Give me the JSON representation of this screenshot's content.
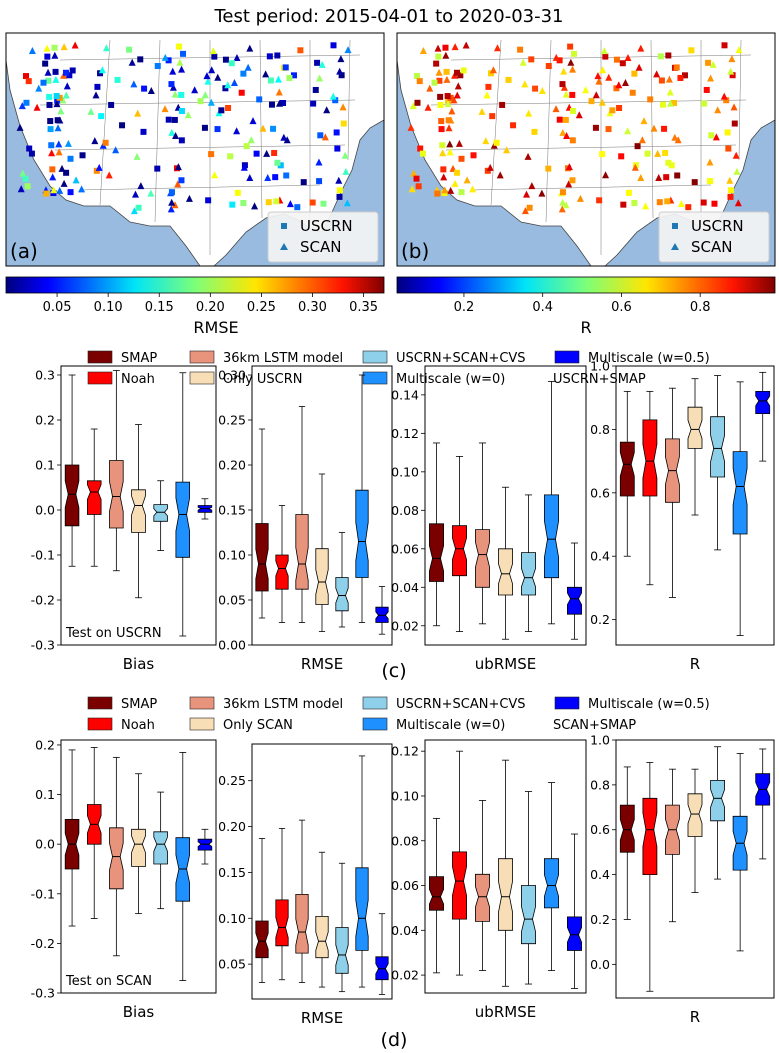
{
  "figure_title": "Test period: 2015-04-01 to 2020-03-31",
  "colors": {
    "SMAP": "#7a0000",
    "Noah": "#ff0000",
    "LSTM36": "#e8937b",
    "OnlyLocal": "#f7deb6",
    "CVS": "#8ecfe9",
    "MS0": "#1e90ff",
    "MS05": "#0000ff",
    "ocean": "#99bbe0",
    "land": "#ffffff"
  },
  "maps": [
    {
      "panel_label": "(a)",
      "metric": "RMSE",
      "colorbar_label": "RMSE",
      "colorbar_ticks": [
        "0.05",
        "0.10",
        "0.15",
        "0.20",
        "0.25",
        "0.30",
        "0.35"
      ],
      "legend": [
        "USCRN",
        "SCAN"
      ]
    },
    {
      "panel_label": "(b)",
      "metric": "R",
      "colorbar_label": "R",
      "colorbar_ticks": [
        "0.2",
        "0.4",
        "0.6",
        "0.8"
      ],
      "legend": [
        "USCRN",
        "SCAN"
      ]
    }
  ],
  "legend_c": {
    "items": [
      "SMAP",
      "Noah",
      "36km LSTM model",
      "Only USCRN",
      "USCRN+SCAN+CVS",
      "Multiscale (w=0)",
      "Multiscale (w=0.5)"
    ],
    "extra": "USCRN+SMAP"
  },
  "legend_d": {
    "items": [
      "SMAP",
      "Noah",
      "36km LSTM model",
      "Only SCAN",
      "USCRN+SCAN+CVS",
      "Multiscale (w=0)",
      "Multiscale (w=0.5)"
    ],
    "extra": "SCAN+SMAP"
  },
  "panel_c_label": "(c)",
  "panel_d_label": "(d)",
  "chart_data": [
    {
      "type": "boxplot",
      "group": "c",
      "metric": "Bias",
      "xlabel": "Bias",
      "annotation": "Test on USCRN",
      "ylim": [
        -0.3,
        0.32
      ],
      "yticks": [
        "-0.3",
        "-0.2",
        "-0.1",
        "0.0",
        "0.1",
        "0.2",
        "0.3"
      ],
      "boxes": [
        {
          "name": "SMAP",
          "whislo": -0.125,
          "q1": -0.035,
          "med": 0.035,
          "q3": 0.1,
          "whishi": 0.3
        },
        {
          "name": "Noah",
          "whislo": -0.125,
          "q1": -0.01,
          "med": 0.04,
          "q3": 0.065,
          "whishi": 0.18
        },
        {
          "name": "36km LSTM model",
          "whislo": -0.135,
          "q1": -0.04,
          "med": 0.03,
          "q3": 0.11,
          "whishi": 0.31
        },
        {
          "name": "Only USCRN",
          "whislo": -0.195,
          "q1": -0.05,
          "med": 0.01,
          "q3": 0.045,
          "whishi": 0.19
        },
        {
          "name": "USCRN+SCAN+CVS",
          "whislo": -0.09,
          "q1": -0.025,
          "med": -0.005,
          "q3": 0.012,
          "whishi": 0.065
        },
        {
          "name": "Multiscale (w=0)",
          "whislo": -0.28,
          "q1": -0.105,
          "med": -0.01,
          "q3": 0.062,
          "whishi": 0.305
        },
        {
          "name": "Multiscale (w=0.5)",
          "whislo": -0.02,
          "q1": -0.005,
          "med": 0.003,
          "q3": 0.01,
          "whishi": 0.025
        }
      ]
    },
    {
      "type": "boxplot",
      "group": "c",
      "metric": "RMSE",
      "xlabel": "RMSE",
      "ylim": [
        0.0,
        0.31
      ],
      "yticks": [
        "0.00",
        "0.05",
        "0.10",
        "0.15",
        "0.20",
        "0.25",
        "0.30"
      ],
      "boxes": [
        {
          "name": "SMAP",
          "whislo": 0.03,
          "q1": 0.06,
          "med": 0.09,
          "q3": 0.135,
          "whishi": 0.24
        },
        {
          "name": "Noah",
          "whislo": 0.025,
          "q1": 0.062,
          "med": 0.085,
          "q3": 0.1,
          "whishi": 0.155
        },
        {
          "name": "36km LSTM model",
          "whislo": 0.025,
          "q1": 0.062,
          "med": 0.09,
          "q3": 0.145,
          "whishi": 0.265
        },
        {
          "name": "Only USCRN",
          "whislo": 0.015,
          "q1": 0.045,
          "med": 0.07,
          "q3": 0.107,
          "whishi": 0.19
        },
        {
          "name": "USCRN+SCAN+CVS",
          "whislo": 0.02,
          "q1": 0.038,
          "med": 0.055,
          "q3": 0.075,
          "whishi": 0.125
        },
        {
          "name": "Multiscale (w=0)",
          "whislo": 0.025,
          "q1": 0.075,
          "med": 0.115,
          "q3": 0.172,
          "whishi": 0.3
        },
        {
          "name": "Multiscale (w=0.5)",
          "whislo": 0.012,
          "q1": 0.025,
          "med": 0.033,
          "q3": 0.042,
          "whishi": 0.065
        }
      ]
    },
    {
      "type": "boxplot",
      "group": "c",
      "metric": "ubRMSE",
      "xlabel": "ubRMSE",
      "ylim": [
        0.01,
        0.155
      ],
      "yticks": [
        "0.02",
        "0.04",
        "0.06",
        "0.08",
        "0.10",
        "0.12",
        "0.14"
      ],
      "boxes": [
        {
          "name": "SMAP",
          "whislo": 0.02,
          "q1": 0.043,
          "med": 0.055,
          "q3": 0.073,
          "whishi": 0.115
        },
        {
          "name": "Noah",
          "whislo": 0.017,
          "q1": 0.046,
          "med": 0.06,
          "q3": 0.072,
          "whishi": 0.108
        },
        {
          "name": "36km LSTM model",
          "whislo": 0.021,
          "q1": 0.04,
          "med": 0.057,
          "q3": 0.07,
          "whishi": 0.115
        },
        {
          "name": "Only USCRN",
          "whislo": 0.013,
          "q1": 0.036,
          "med": 0.047,
          "q3": 0.06,
          "whishi": 0.092
        },
        {
          "name": "USCRN+SCAN+CVS",
          "whislo": 0.017,
          "q1": 0.036,
          "med": 0.045,
          "q3": 0.058,
          "whishi": 0.088
        },
        {
          "name": "Multiscale (w=0)",
          "whislo": 0.021,
          "q1": 0.045,
          "med": 0.065,
          "q3": 0.088,
          "whishi": 0.147
        },
        {
          "name": "Multiscale (w=0.5)",
          "whislo": 0.013,
          "q1": 0.026,
          "med": 0.034,
          "q3": 0.04,
          "whishi": 0.063
        }
      ]
    },
    {
      "type": "boxplot",
      "group": "c",
      "metric": "R",
      "xlabel": "R",
      "ylim": [
        0.12,
        1.0
      ],
      "yticks": [
        "0.2",
        "0.4",
        "0.6",
        "0.8",
        "1.0"
      ],
      "boxes": [
        {
          "name": "SMAP",
          "whislo": 0.4,
          "q1": 0.59,
          "med": 0.69,
          "q3": 0.76,
          "whishi": 0.92
        },
        {
          "name": "Noah",
          "whislo": 0.31,
          "q1": 0.59,
          "med": 0.7,
          "q3": 0.83,
          "whishi": 0.92
        },
        {
          "name": "36km LSTM model",
          "whislo": 0.27,
          "q1": 0.57,
          "med": 0.67,
          "q3": 0.77,
          "whishi": 0.93
        },
        {
          "name": "Only USCRN",
          "whislo": 0.53,
          "q1": 0.74,
          "med": 0.8,
          "q3": 0.87,
          "whishi": 0.96
        },
        {
          "name": "USCRN+SCAN+CVS",
          "whislo": 0.42,
          "q1": 0.65,
          "med": 0.74,
          "q3": 0.84,
          "whishi": 0.97
        },
        {
          "name": "Multiscale (w=0)",
          "whislo": 0.15,
          "q1": 0.47,
          "med": 0.62,
          "q3": 0.73,
          "whishi": 0.95
        },
        {
          "name": "Multiscale (w=0.5)",
          "whislo": 0.7,
          "q1": 0.85,
          "med": 0.89,
          "q3": 0.92,
          "whishi": 0.98
        }
      ]
    },
    {
      "type": "boxplot",
      "group": "d",
      "metric": "Bias",
      "xlabel": "Bias",
      "annotation": "Test on SCAN",
      "ylim": [
        -0.3,
        0.21
      ],
      "yticks": [
        "-0.3",
        "-0.2",
        "-0.1",
        "0.0",
        "0.1",
        "0.2"
      ],
      "boxes": [
        {
          "name": "SMAP",
          "whislo": -0.165,
          "q1": -0.05,
          "med": 0.0,
          "q3": 0.05,
          "whishi": 0.19
        },
        {
          "name": "Noah",
          "whislo": -0.15,
          "q1": 0.0,
          "med": 0.04,
          "q3": 0.08,
          "whishi": 0.195
        },
        {
          "name": "36km LSTM model",
          "whislo": -0.225,
          "q1": -0.09,
          "med": -0.025,
          "q3": 0.033,
          "whishi": 0.175
        },
        {
          "name": "Only SCAN",
          "whislo": -0.14,
          "q1": -0.045,
          "med": 0.0,
          "q3": 0.03,
          "whishi": 0.142
        },
        {
          "name": "USCRN+SCAN+CVS",
          "whislo": -0.13,
          "q1": -0.04,
          "med": 0.0,
          "q3": 0.025,
          "whishi": 0.105
        },
        {
          "name": "Multiscale (w=0)",
          "whislo": -0.275,
          "q1": -0.115,
          "med": -0.05,
          "q3": 0.013,
          "whishi": 0.185
        },
        {
          "name": "Multiscale (w=0.5)",
          "whislo": -0.04,
          "q1": -0.012,
          "med": 0.0,
          "q3": 0.01,
          "whishi": 0.03
        }
      ]
    },
    {
      "type": "boxplot",
      "group": "d",
      "metric": "RMSE",
      "xlabel": "RMSE",
      "ylim": [
        0.012,
        0.29
      ],
      "yticks": [
        "0.05",
        "0.10",
        "0.15",
        "0.20",
        "0.25"
      ],
      "boxes": [
        {
          "name": "SMAP",
          "whislo": 0.03,
          "q1": 0.057,
          "med": 0.075,
          "q3": 0.097,
          "whishi": 0.187
        },
        {
          "name": "Noah",
          "whislo": 0.033,
          "q1": 0.07,
          "med": 0.09,
          "q3": 0.12,
          "whishi": 0.198
        },
        {
          "name": "36km LSTM model",
          "whislo": 0.03,
          "q1": 0.062,
          "med": 0.085,
          "q3": 0.126,
          "whishi": 0.207
        },
        {
          "name": "Only SCAN",
          "whislo": 0.025,
          "q1": 0.057,
          "med": 0.075,
          "q3": 0.102,
          "whishi": 0.172
        },
        {
          "name": "USCRN+SCAN+CVS",
          "whislo": 0.02,
          "q1": 0.04,
          "med": 0.06,
          "q3": 0.09,
          "whishi": 0.16
        },
        {
          "name": "Multiscale (w=0)",
          "whislo": 0.025,
          "q1": 0.065,
          "med": 0.1,
          "q3": 0.155,
          "whishi": 0.277
        },
        {
          "name": "Multiscale (w=0.5)",
          "whislo": 0.017,
          "q1": 0.033,
          "med": 0.045,
          "q3": 0.058,
          "whishi": 0.105
        }
      ]
    },
    {
      "type": "boxplot",
      "group": "d",
      "metric": "ubRMSE",
      "xlabel": "ubRMSE",
      "ylim": [
        0.012,
        0.125
      ],
      "yticks": [
        "0.02",
        "0.04",
        "0.06",
        "0.08",
        "0.10",
        "0.12"
      ],
      "boxes": [
        {
          "name": "SMAP",
          "whislo": 0.021,
          "q1": 0.049,
          "med": 0.055,
          "q3": 0.064,
          "whishi": 0.09
        },
        {
          "name": "Noah",
          "whislo": 0.02,
          "q1": 0.045,
          "med": 0.062,
          "q3": 0.075,
          "whishi": 0.12
        },
        {
          "name": "36km LSTM model",
          "whislo": 0.022,
          "q1": 0.044,
          "med": 0.055,
          "q3": 0.065,
          "whishi": 0.098
        },
        {
          "name": "Only SCAN",
          "whislo": 0.015,
          "q1": 0.04,
          "med": 0.055,
          "q3": 0.072,
          "whishi": 0.116
        },
        {
          "name": "USCRN+SCAN+CVS",
          "whislo": 0.016,
          "q1": 0.034,
          "med": 0.045,
          "q3": 0.06,
          "whishi": 0.102
        },
        {
          "name": "Multiscale (w=0)",
          "whislo": 0.022,
          "q1": 0.05,
          "med": 0.06,
          "q3": 0.072,
          "whishi": 0.106
        },
        {
          "name": "Multiscale (w=0.5)",
          "whislo": 0.014,
          "q1": 0.031,
          "med": 0.038,
          "q3": 0.046,
          "whishi": 0.083
        }
      ]
    },
    {
      "type": "boxplot",
      "group": "d",
      "metric": "R",
      "xlabel": "R",
      "ylim": [
        -0.15,
        1.0
      ],
      "yticks": [
        "0.0",
        "0.2",
        "0.4",
        "0.6",
        "0.8",
        "1.0"
      ],
      "boxes": [
        {
          "name": "SMAP",
          "whislo": 0.2,
          "q1": 0.5,
          "med": 0.6,
          "q3": 0.71,
          "whishi": 0.88
        },
        {
          "name": "Noah",
          "whislo": -0.12,
          "q1": 0.4,
          "med": 0.6,
          "q3": 0.74,
          "whishi": 0.9
        },
        {
          "name": "36km LSTM model",
          "whislo": 0.19,
          "q1": 0.49,
          "med": 0.6,
          "q3": 0.71,
          "whishi": 0.87
        },
        {
          "name": "Only SCAN",
          "whislo": 0.32,
          "q1": 0.57,
          "med": 0.67,
          "q3": 0.76,
          "whishi": 0.87
        },
        {
          "name": "USCRN+SCAN+CVS",
          "whislo": 0.38,
          "q1": 0.64,
          "med": 0.74,
          "q3": 0.82,
          "whishi": 0.97
        },
        {
          "name": "Multiscale (w=0)",
          "whislo": 0.06,
          "q1": 0.42,
          "med": 0.54,
          "q3": 0.66,
          "whishi": 0.94
        },
        {
          "name": "Multiscale (w=0.5)",
          "whislo": 0.47,
          "q1": 0.71,
          "med": 0.78,
          "q3": 0.85,
          "whishi": 0.96
        }
      ]
    }
  ]
}
